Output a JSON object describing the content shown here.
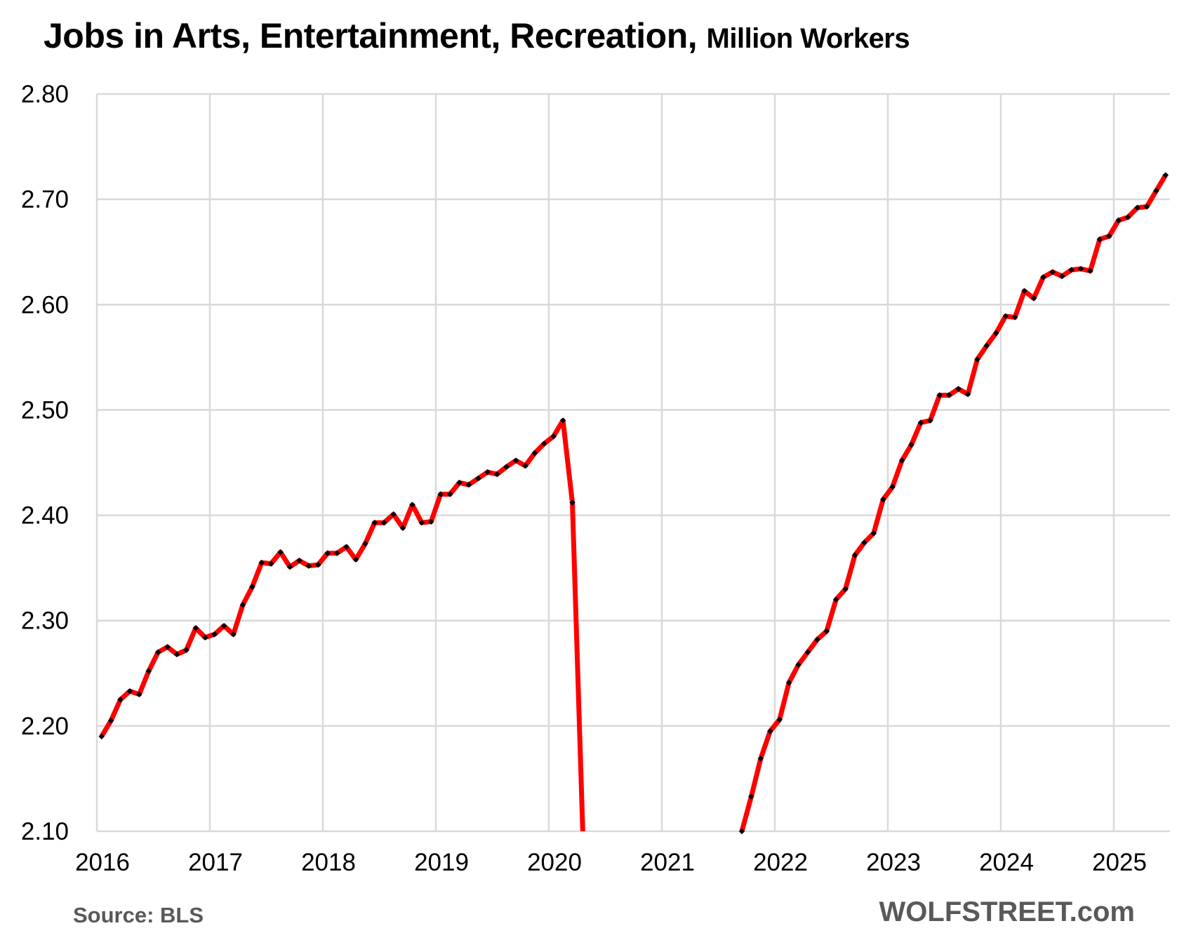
{
  "title": "Jobs in Arts, Entertainment, Recreation,",
  "subtitle": "Million Workers",
  "source": "Source: BLS",
  "brand": "WOLFSTREET.com",
  "chart_data": {
    "type": "line",
    "title": "Jobs in Arts, Entertainment, Recreation, Million Workers",
    "xlabel": "",
    "ylabel": "",
    "ylim": [
      2.1,
      2.8
    ],
    "yticks": [
      "2.80",
      "2.70",
      "2.60",
      "2.50",
      "2.40",
      "2.30",
      "2.20",
      "2.10"
    ],
    "xticks": [
      "2016",
      "2017",
      "2018",
      "2019",
      "2020",
      "2021",
      "2022",
      "2023",
      "2024",
      "2025"
    ],
    "grid": true,
    "frequency": "monthly",
    "start": "2016-01",
    "end": "2025-06",
    "line_color": "#ff0000",
    "marker_color": "#000000",
    "note_offscale": "Apr 2020 - Aug 2021 values fall below the 2.10 axis minimum",
    "series": [
      {
        "values": [
          2.19,
          2.205,
          2.225,
          2.233,
          2.23,
          2.252,
          2.27,
          2.275,
          2.268,
          2.272,
          2.293,
          2.284,
          2.287,
          2.295,
          2.287,
          2.315,
          2.332,
          2.355,
          2.354,
          2.365,
          2.351,
          2.357,
          2.352,
          2.353,
          2.364,
          2.364,
          2.37,
          2.358,
          2.373,
          2.393,
          2.393,
          2.401,
          2.388,
          2.41,
          2.393,
          2.394,
          2.42,
          2.42,
          2.431,
          2.429,
          2.435,
          2.441,
          2.439,
          2.446,
          2.452,
          2.447,
          2.459,
          2.468,
          2.475,
          2.49,
          2.412,
          null,
          null,
          null,
          null,
          null,
          null,
          null,
          null,
          null,
          null,
          null,
          null,
          null,
          null,
          null,
          null,
          null,
          2.1,
          2.133,
          2.169,
          2.195,
          2.206,
          2.241,
          2.258,
          2.27,
          2.282,
          2.29,
          2.32,
          2.33,
          2.362,
          2.374,
          2.383,
          2.415,
          2.427,
          2.452,
          2.467,
          2.488,
          2.49,
          2.514,
          2.514,
          2.52,
          2.515,
          2.548,
          2.561,
          2.573,
          2.589,
          2.588,
          2.613,
          2.606,
          2.626,
          2.631,
          2.627,
          2.633,
          2.634,
          2.632,
          2.662,
          2.665,
          2.68,
          2.683,
          2.692,
          2.693,
          2.708,
          2.723
        ]
      }
    ]
  }
}
